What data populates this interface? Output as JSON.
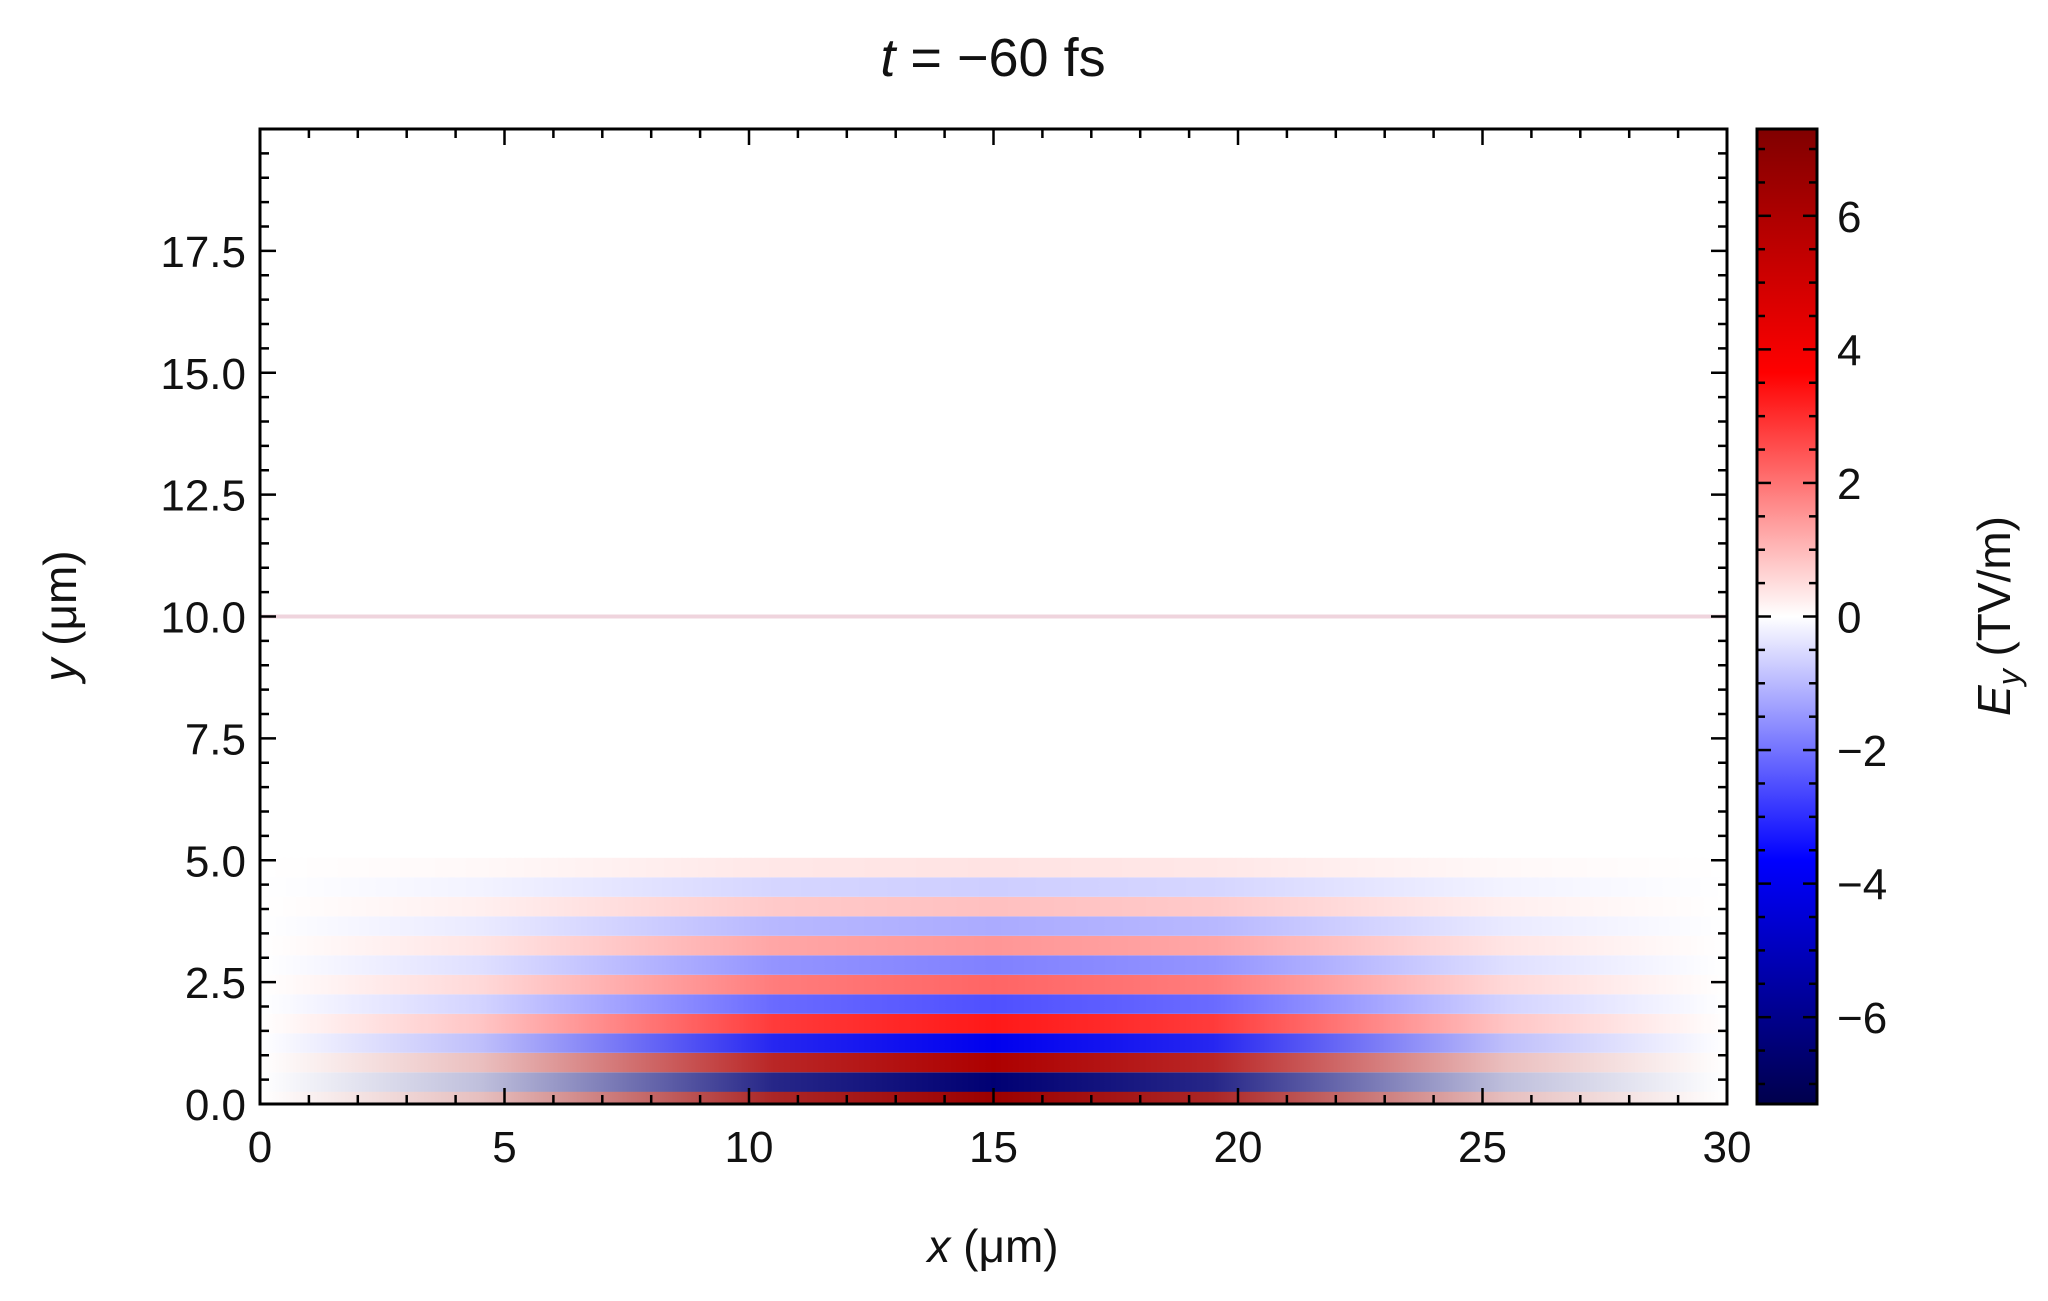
{
  "chart_data": {
    "type": "heatmap",
    "title": {
      "var": "t",
      "rest": " = −60 fs"
    },
    "xlabel": {
      "var": "x",
      "rest": " (μm)"
    },
    "ylabel": {
      "var": "y",
      "rest": " (μm)"
    },
    "xlim": [
      0,
      30
    ],
    "ylim": [
      0,
      20
    ],
    "x_ticks": [
      0,
      5,
      10,
      15,
      20,
      25,
      30
    ],
    "x_tick_labels": [
      "0",
      "5",
      "10",
      "15",
      "20",
      "25",
      "30"
    ],
    "y_ticks": [
      0.0,
      2.5,
      5.0,
      7.5,
      10.0,
      12.5,
      15.0,
      17.5
    ],
    "y_tick_labels": [
      "0.0",
      "2.5",
      "5.0",
      "7.5",
      "10.0",
      "12.5",
      "15.0",
      "17.5"
    ],
    "colorbar": {
      "label_var": "E",
      "label_sub": "y",
      "label_unit": " (TV/m)",
      "range": [
        -7.3,
        7.3
      ],
      "ticks": [
        -6,
        -4,
        -2,
        0,
        2,
        4,
        6
      ],
      "tick_labels": [
        "−6",
        "−4",
        "−2",
        "0",
        "2",
        "4",
        "6"
      ],
      "colormap": "seismic",
      "colors": [
        "#00004c",
        "#0000ff",
        "#ffffff",
        "#ff0000",
        "#800000"
      ]
    },
    "field": {
      "description_free": true,
      "dominant_band": {
        "y_range": [
          0,
          5
        ],
        "x_range": [
          4,
          27
        ],
        "peak_x": 15
      },
      "bands": [
        {
          "y": 0.08,
          "value": 6.5
        },
        {
          "y": 0.45,
          "value": -6.5
        },
        {
          "y": 0.85,
          "value": 6.0
        },
        {
          "y": 1.25,
          "value": -4.0
        },
        {
          "y": 1.65,
          "value": 3.3
        },
        {
          "y": 2.05,
          "value": -2.5
        },
        {
          "y": 2.45,
          "value": 2.2
        },
        {
          "y": 2.85,
          "value": -1.8
        },
        {
          "y": 3.25,
          "value": 1.5
        },
        {
          "y": 3.65,
          "value": -1.2
        },
        {
          "y": 4.05,
          "value": 0.9
        },
        {
          "y": 4.45,
          "value": -0.7
        },
        {
          "y": 4.85,
          "value": 0.4
        }
      ]
    }
  }
}
